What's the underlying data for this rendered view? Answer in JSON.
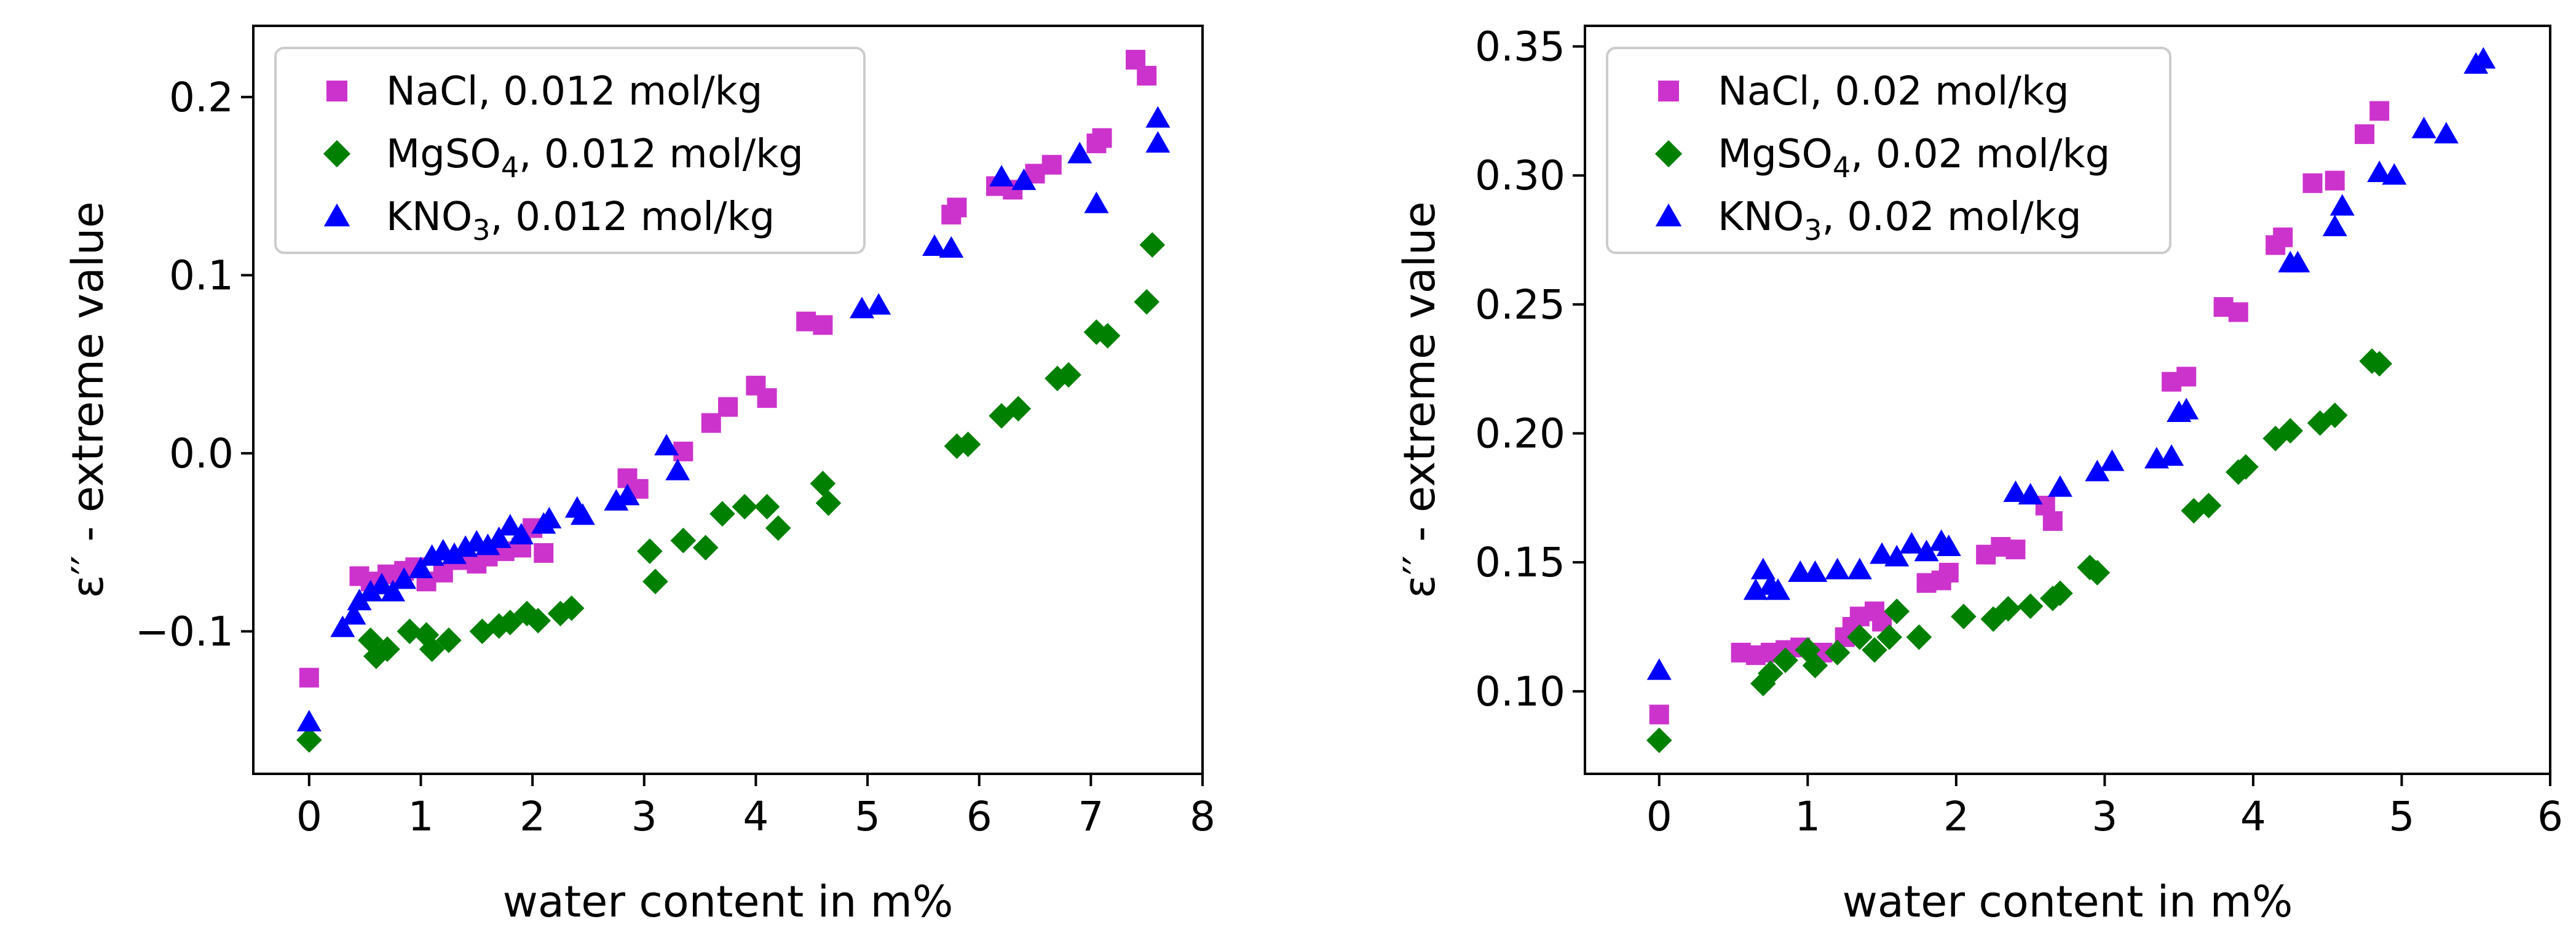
{
  "chart_data": [
    {
      "type": "scatter",
      "xlabel": "water content in m%",
      "ylabel": "ε′′ - extreme value",
      "xlim": [
        -0.5,
        8
      ],
      "ylim": [
        -0.18,
        0.24
      ],
      "xticks": [
        0,
        1,
        2,
        3,
        4,
        5,
        6,
        7,
        8
      ],
      "xtick_labels": [
        "0",
        "1",
        "2",
        "3",
        "4",
        "5",
        "6",
        "7",
        "8"
      ],
      "yticks": [
        -0.1,
        0.0,
        0.1,
        0.2
      ],
      "ytick_labels": [
        "−0.1",
        "0.0",
        "0.1",
        "0.2"
      ],
      "grid": false,
      "legend_position": "top-left",
      "series": [
        {
          "name": "NaCl, 0.012 mol/kg",
          "label_main": "NaCl, 0.012 mol/kg",
          "marker": "square",
          "color": "#cc33cc",
          "points": [
            [
              0,
              -0.126
            ],
            [
              0.45,
              -0.069
            ],
            [
              0.55,
              -0.072
            ],
            [
              0.7,
              -0.068
            ],
            [
              0.85,
              -0.066
            ],
            [
              0.95,
              -0.064
            ],
            [
              1.05,
              -0.072
            ],
            [
              1.2,
              -0.067
            ],
            [
              1.35,
              -0.06
            ],
            [
              1.5,
              -0.062
            ],
            [
              1.6,
              -0.058
            ],
            [
              1.75,
              -0.055
            ],
            [
              1.9,
              -0.053
            ],
            [
              2.0,
              -0.042
            ],
            [
              2.1,
              -0.056
            ],
            [
              2.85,
              -0.014
            ],
            [
              2.95,
              -0.02
            ],
            [
              3.35,
              0.001
            ],
            [
              3.6,
              0.017
            ],
            [
              3.75,
              0.026
            ],
            [
              4.0,
              0.038
            ],
            [
              4.1,
              0.031
            ],
            [
              4.45,
              0.074
            ],
            [
              4.6,
              0.072
            ],
            [
              5.75,
              0.134
            ],
            [
              5.8,
              0.138
            ],
            [
              6.15,
              0.15
            ],
            [
              6.3,
              0.148
            ],
            [
              6.5,
              0.157
            ],
            [
              6.65,
              0.162
            ],
            [
              7.05,
              0.174
            ],
            [
              7.1,
              0.177
            ],
            [
              7.4,
              0.221
            ],
            [
              7.5,
              0.212
            ]
          ]
        },
        {
          "name": "MgSO₄, 0.012 mol/kg",
          "label_main": "MgSO",
          "label_sub": "4",
          "label_tail": ", 0.012 mol/kg",
          "marker": "diamond",
          "color": "#008000",
          "points": [
            [
              0,
              -0.161
            ],
            [
              0.55,
              -0.105
            ],
            [
              0.6,
              -0.114
            ],
            [
              0.7,
              -0.11
            ],
            [
              0.9,
              -0.1
            ],
            [
              1.05,
              -0.102
            ],
            [
              1.1,
              -0.11
            ],
            [
              1.25,
              -0.105
            ],
            [
              1.55,
              -0.1
            ],
            [
              1.7,
              -0.097
            ],
            [
              1.8,
              -0.095
            ],
            [
              1.95,
              -0.09
            ],
            [
              2.05,
              -0.094
            ],
            [
              2.25,
              -0.09
            ],
            [
              2.35,
              -0.087
            ],
            [
              3.05,
              -0.055
            ],
            [
              3.1,
              -0.072
            ],
            [
              3.35,
              -0.049
            ],
            [
              3.55,
              -0.053
            ],
            [
              3.7,
              -0.034
            ],
            [
              3.9,
              -0.03
            ],
            [
              4.1,
              -0.03
            ],
            [
              4.2,
              -0.042
            ],
            [
              4.6,
              -0.017
            ],
            [
              4.65,
              -0.028
            ],
            [
              5.8,
              0.004
            ],
            [
              5.9,
              0.005
            ],
            [
              6.2,
              0.021
            ],
            [
              6.35,
              0.025
            ],
            [
              6.7,
              0.042
            ],
            [
              6.8,
              0.044
            ],
            [
              7.05,
              0.068
            ],
            [
              7.15,
              0.066
            ],
            [
              7.5,
              0.085
            ],
            [
              7.55,
              0.117
            ]
          ]
        },
        {
          "name": "KNO₃, 0.012 mol/kg",
          "label_main": "KNO",
          "label_sub": "3",
          "label_tail": ", 0.012 mol/kg",
          "marker": "triangle",
          "color": "#0000ff",
          "points": [
            [
              0,
              -0.151
            ],
            [
              0.3,
              -0.098
            ],
            [
              0.4,
              -0.091
            ],
            [
              0.45,
              -0.083
            ],
            [
              0.55,
              -0.078
            ],
            [
              0.65,
              -0.074
            ],
            [
              0.75,
              -0.078
            ],
            [
              0.85,
              -0.071
            ],
            [
              1.0,
              -0.065
            ],
            [
              1.1,
              -0.058
            ],
            [
              1.2,
              -0.055
            ],
            [
              1.3,
              -0.057
            ],
            [
              1.4,
              -0.053
            ],
            [
              1.5,
              -0.05
            ],
            [
              1.6,
              -0.052
            ],
            [
              1.7,
              -0.048
            ],
            [
              1.8,
              -0.041
            ],
            [
              1.9,
              -0.046
            ],
            [
              2.1,
              -0.04
            ],
            [
              2.15,
              -0.037
            ],
            [
              2.4,
              -0.031
            ],
            [
              2.45,
              -0.035
            ],
            [
              2.75,
              -0.027
            ],
            [
              2.85,
              -0.024
            ],
            [
              3.2,
              0.004
            ],
            [
              3.3,
              -0.01
            ],
            [
              4.95,
              0.081
            ],
            [
              5.1,
              0.083
            ],
            [
              5.6,
              0.116
            ],
            [
              5.75,
              0.115
            ],
            [
              6.2,
              0.155
            ],
            [
              6.4,
              0.153
            ],
            [
              6.9,
              0.168
            ],
            [
              7.05,
              0.14
            ],
            [
              7.6,
              0.174
            ],
            [
              7.6,
              0.188
            ]
          ]
        }
      ]
    },
    {
      "type": "scatter",
      "xlabel": "water content in m%",
      "ylabel": "ε′′ - extreme value",
      "xlim": [
        -0.5,
        6
      ],
      "ylim": [
        0.068,
        0.358
      ],
      "xticks": [
        0,
        1,
        2,
        3,
        4,
        5,
        6
      ],
      "xtick_labels": [
        "0",
        "1",
        "2",
        "3",
        "4",
        "5",
        "6"
      ],
      "yticks": [
        0.1,
        0.15,
        0.2,
        0.25,
        0.3,
        0.35
      ],
      "ytick_labels": [
        "0.10",
        "0.15",
        "0.20",
        "0.25",
        "0.30",
        "0.35"
      ],
      "grid": false,
      "legend_position": "top-left",
      "series": [
        {
          "name": "NaCl, 0.02 mol/kg",
          "label_main": "NaCl, 0.02 mol/kg",
          "marker": "square",
          "color": "#cc33cc",
          "points": [
            [
              0,
              0.091
            ],
            [
              0.55,
              0.115
            ],
            [
              0.65,
              0.114
            ],
            [
              0.75,
              0.115
            ],
            [
              0.85,
              0.116
            ],
            [
              0.95,
              0.117
            ],
            [
              1.1,
              0.115
            ],
            [
              1.25,
              0.121
            ],
            [
              1.3,
              0.125
            ],
            [
              1.35,
              0.129
            ],
            [
              1.45,
              0.131
            ],
            [
              1.5,
              0.127
            ],
            [
              1.8,
              0.142
            ],
            [
              1.9,
              0.143
            ],
            [
              1.95,
              0.146
            ],
            [
              2.2,
              0.153
            ],
            [
              2.3,
              0.156
            ],
            [
              2.4,
              0.155
            ],
            [
              2.6,
              0.172
            ],
            [
              2.65,
              0.166
            ],
            [
              3.45,
              0.22
            ],
            [
              3.55,
              0.222
            ],
            [
              3.8,
              0.249
            ],
            [
              3.9,
              0.247
            ],
            [
              4.15,
              0.273
            ],
            [
              4.2,
              0.276
            ],
            [
              4.4,
              0.297
            ],
            [
              4.55,
              0.298
            ],
            [
              4.75,
              0.316
            ],
            [
              4.85,
              0.325
            ]
          ]
        },
        {
          "name": "MgSO₄, 0.02 mol/kg",
          "label_main": "MgSO",
          "label_sub": "4",
          "label_tail": ", 0.02 mol/kg",
          "marker": "diamond",
          "color": "#008000",
          "points": [
            [
              0,
              0.081
            ],
            [
              0.7,
              0.103
            ],
            [
              0.75,
              0.107
            ],
            [
              0.85,
              0.112
            ],
            [
              1.0,
              0.116
            ],
            [
              1.05,
              0.11
            ],
            [
              1.2,
              0.115
            ],
            [
              1.35,
              0.121
            ],
            [
              1.45,
              0.116
            ],
            [
              1.55,
              0.121
            ],
            [
              1.6,
              0.131
            ],
            [
              1.75,
              0.121
            ],
            [
              2.05,
              0.129
            ],
            [
              2.25,
              0.128
            ],
            [
              2.35,
              0.132
            ],
            [
              2.5,
              0.133
            ],
            [
              2.65,
              0.136
            ],
            [
              2.7,
              0.138
            ],
            [
              2.9,
              0.148
            ],
            [
              2.95,
              0.146
            ],
            [
              3.6,
              0.17
            ],
            [
              3.7,
              0.172
            ],
            [
              3.9,
              0.185
            ],
            [
              3.95,
              0.187
            ],
            [
              4.15,
              0.198
            ],
            [
              4.25,
              0.201
            ],
            [
              4.45,
              0.204
            ],
            [
              4.55,
              0.207
            ],
            [
              4.8,
              0.228
            ],
            [
              4.85,
              0.227
            ]
          ]
        },
        {
          "name": "KNO₃, 0.02 mol/kg",
          "label_main": "KNO",
          "label_sub": "3",
          "label_tail": ", 0.02 mol/kg",
          "marker": "triangle",
          "color": "#0000ff",
          "points": [
            [
              0,
              0.108
            ],
            [
              0.65,
              0.139
            ],
            [
              0.7,
              0.147
            ],
            [
              0.75,
              0.141
            ],
            [
              0.8,
              0.139
            ],
            [
              0.95,
              0.146
            ],
            [
              1.05,
              0.146
            ],
            [
              1.2,
              0.147
            ],
            [
              1.35,
              0.147
            ],
            [
              1.5,
              0.153
            ],
            [
              1.6,
              0.152
            ],
            [
              1.7,
              0.157
            ],
            [
              1.8,
              0.154
            ],
            [
              1.9,
              0.158
            ],
            [
              1.95,
              0.156
            ],
            [
              2.4,
              0.177
            ],
            [
              2.5,
              0.176
            ],
            [
              2.7,
              0.179
            ],
            [
              2.95,
              0.185
            ],
            [
              3.05,
              0.189
            ],
            [
              3.35,
              0.19
            ],
            [
              3.45,
              0.191
            ],
            [
              3.5,
              0.208
            ],
            [
              3.55,
              0.209
            ],
            [
              4.25,
              0.266
            ],
            [
              4.3,
              0.266
            ],
            [
              4.55,
              0.28
            ],
            [
              4.6,
              0.288
            ],
            [
              4.85,
              0.301
            ],
            [
              4.95,
              0.3
            ],
            [
              5.15,
              0.318
            ],
            [
              5.3,
              0.316
            ],
            [
              5.5,
              0.343
            ],
            [
              5.55,
              0.345
            ]
          ]
        }
      ]
    }
  ]
}
